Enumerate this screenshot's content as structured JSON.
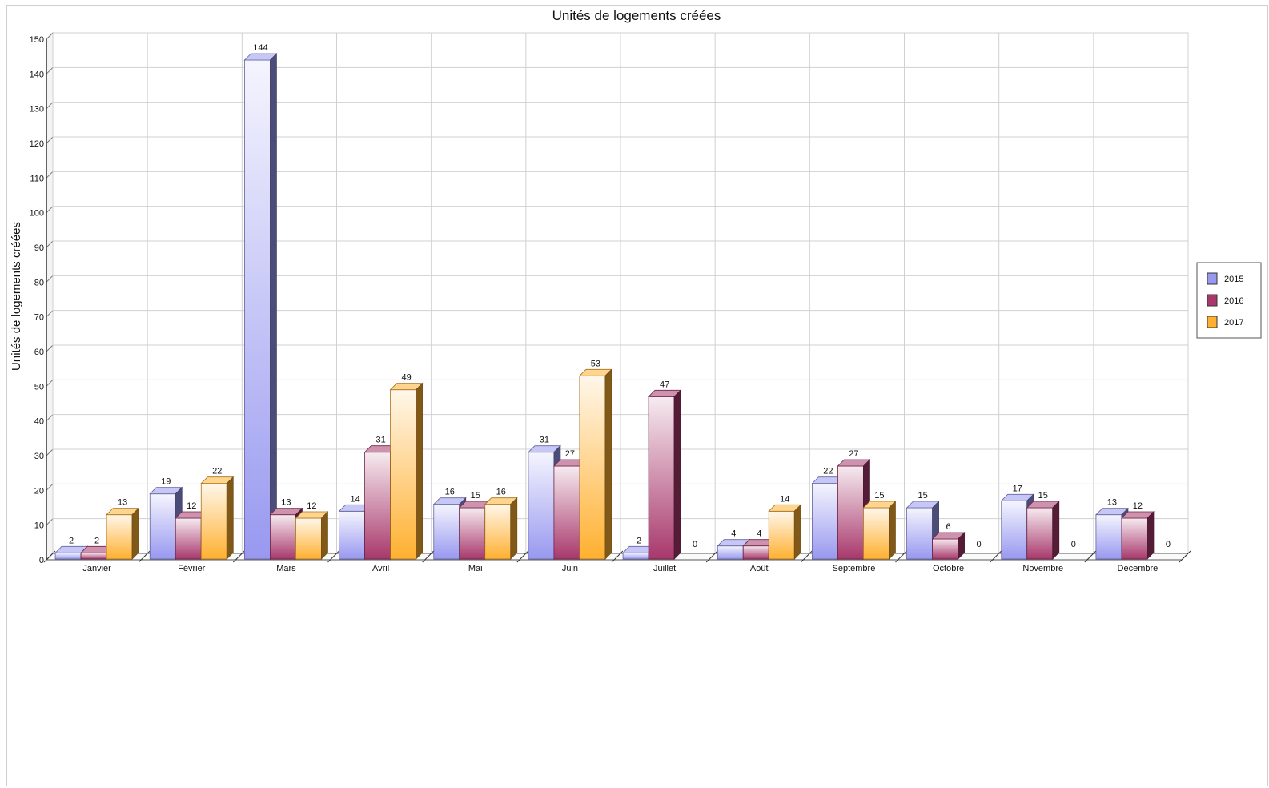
{
  "chart_data": {
    "type": "bar",
    "title": "Unités de logements créées",
    "ylabel": "Unités de logements créées",
    "xlabel": "",
    "ylim": [
      0,
      150
    ],
    "yticks": [
      0,
      10,
      20,
      30,
      40,
      50,
      60,
      70,
      80,
      90,
      100,
      110,
      120,
      130,
      140,
      150
    ],
    "grid": true,
    "legend_position": "right",
    "categories": [
      "Janvier",
      "Février",
      "Mars",
      "Avril",
      "Mai",
      "Juin",
      "Juillet",
      "Août",
      "Septembre",
      "Octobre",
      "Novembre",
      "Décembre"
    ],
    "series": [
      {
        "name": "2015",
        "color": "#9898f0",
        "values": [
          2,
          19,
          144,
          14,
          16,
          31,
          2,
          4,
          22,
          15,
          17,
          13
        ]
      },
      {
        "name": "2016",
        "color": "#a8386c",
        "values": [
          2,
          12,
          13,
          31,
          15,
          27,
          47,
          4,
          27,
          6,
          15,
          12
        ]
      },
      {
        "name": "2017",
        "color": "#ffb030",
        "values": [
          13,
          22,
          12,
          49,
          16,
          53,
          0,
          14,
          15,
          0,
          0,
          0
        ]
      }
    ]
  }
}
